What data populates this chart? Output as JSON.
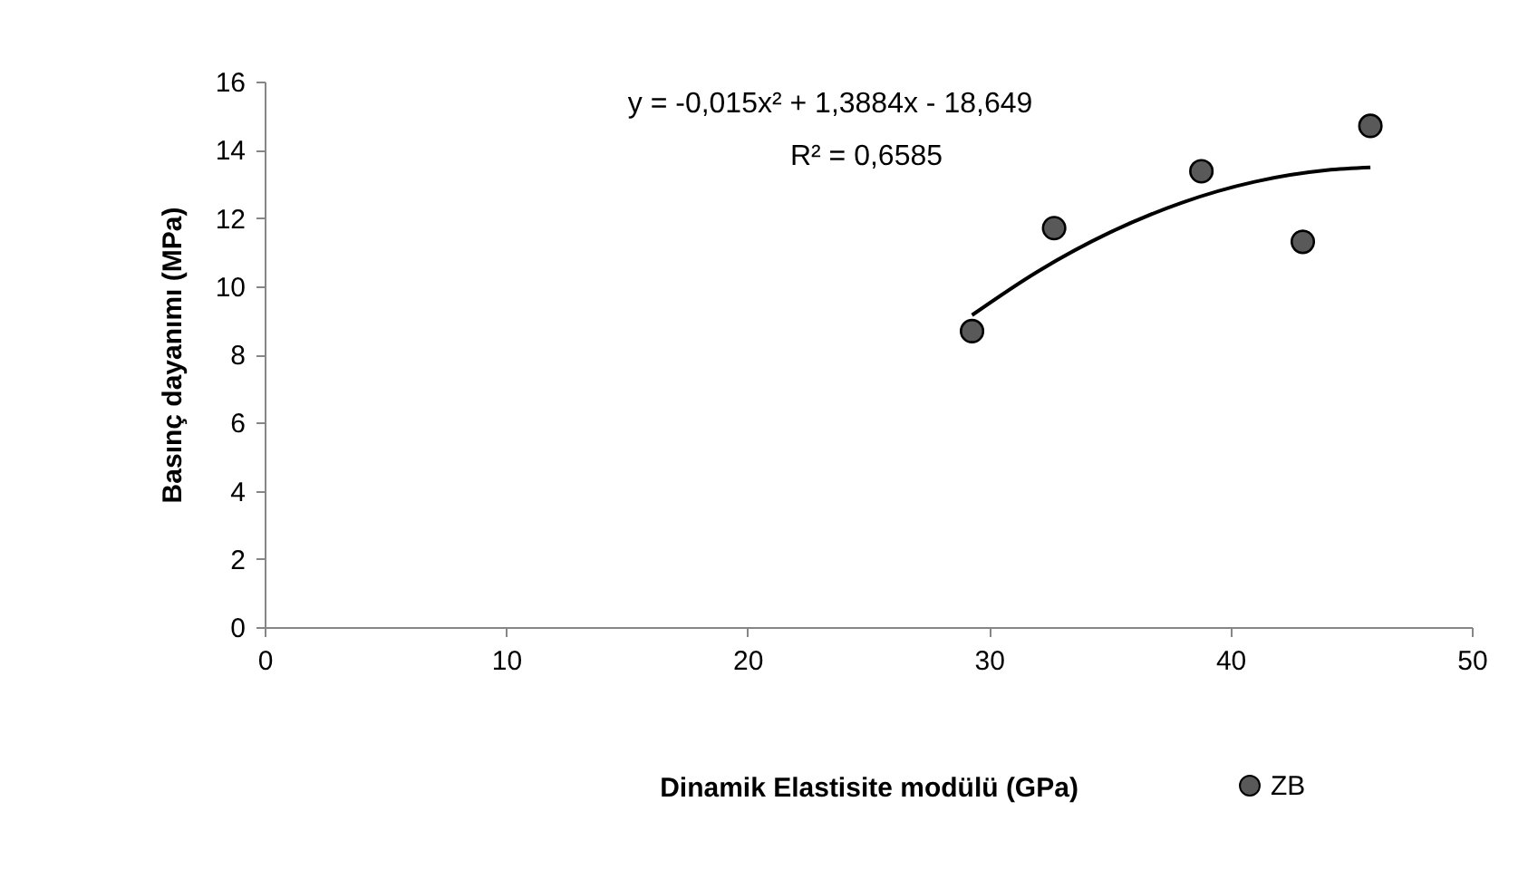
{
  "chart_data": {
    "type": "scatter",
    "xlabel": "Dinamik Elastisite modülü (GPa)",
    "ylabel": "Basınç dayanımı (MPa)",
    "annotations": [
      "y = -0,015x² + 1,3884x - 18,649",
      "R² = 0,6585"
    ],
    "xlim": [
      0,
      50
    ],
    "xticks": [
      0,
      10,
      20,
      30,
      40,
      50
    ],
    "ylim": [
      0,
      16
    ],
    "yticks": [
      0,
      2,
      4,
      6,
      8,
      10,
      12,
      14,
      16
    ],
    "grid": false,
    "legend": "bottom right",
    "series": [
      {
        "name": "ZB",
        "marker": "circle",
        "color": "#595959",
        "x": [
          29.3,
          32.7,
          38.8,
          43.0,
          45.8
        ],
        "values": [
          8.68,
          11.7,
          13.37,
          11.3,
          14.7
        ]
      },
      {
        "type": "line",
        "marker": "none",
        "color": "#000000",
        "line_style": "solid",
        "x": [
          29.3,
          32,
          35,
          38,
          41,
          44,
          45.8
        ],
        "values": [
          9.15,
          10.42,
          11.57,
          12.45,
          13.06,
          13.4,
          13.48
        ]
      }
    ]
  }
}
